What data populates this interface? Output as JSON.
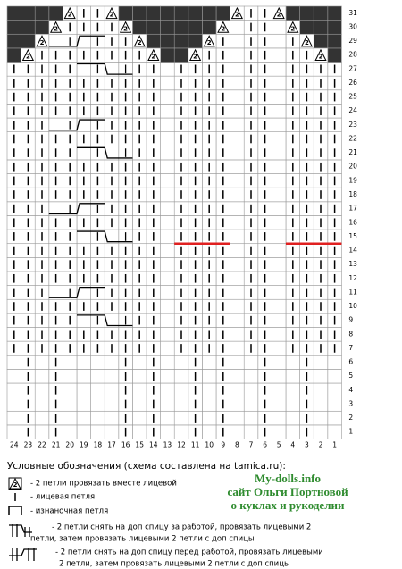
{
  "row_numbers": [
    1,
    2,
    3,
    4,
    5,
    6,
    7,
    8,
    9,
    10,
    11,
    12,
    13,
    14,
    15,
    16,
    17,
    18,
    19,
    20,
    21,
    22,
    23,
    24,
    25,
    26,
    27,
    28,
    29,
    30,
    31
  ],
  "column_numbers": [
    24,
    23,
    22,
    21,
    20,
    19,
    18,
    17,
    16,
    15,
    14,
    13,
    12,
    11,
    10,
    9,
    8,
    7,
    6,
    5,
    4,
    3,
    2,
    1
  ],
  "decrease_symbol_label": "2",
  "legend": {
    "title": "Условные обозначения (схема составлена на tamica.ru):",
    "items": [
      {
        "lines": [
          "- 2 петли провязать вместе лицевой"
        ]
      },
      {
        "lines": [
          "- лицевая петля"
        ]
      },
      {
        "lines": [
          "- изнаночная петля"
        ]
      },
      {
        "lines": [
          "- 2 петли снять на доп спицу за работой, провязать лицевыми 2",
          "петли, затем провязать лицевыми 2 петли с доп спицы"
        ]
      },
      {
        "lines": [
          "- 2 петли снять на доп спицу перед работой, провязать лицевыми",
          "2 петли, затем провязать лицевыми 2 петли с доп спицы"
        ]
      }
    ]
  },
  "site": {
    "name": "My-dolls.info",
    "line1": "сайт Ольги Портновой",
    "line2": "о куклах и рукоделии"
  }
}
